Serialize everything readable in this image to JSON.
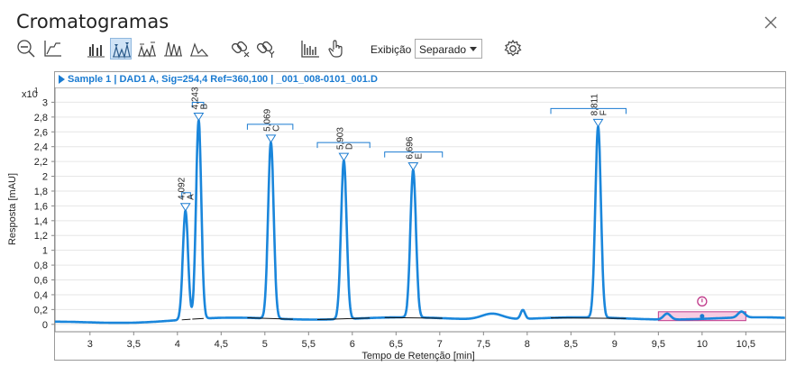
{
  "window": {
    "title": "Cromatogramas"
  },
  "toolbar": {
    "display_label": "Exibição",
    "display_mode": "Separado",
    "active_tool": "peak-label-icon"
  },
  "sample": {
    "header": "Sample 1 | DAD1 A, Sig=254,4 Ref=360,100 | _001_008-0101_001.D"
  },
  "chart_data": {
    "type": "line",
    "title": "",
    "xlabel": "Tempo de Retenção [min]",
    "ylabel": "Resposta [mAU]",
    "y_multiplier": "x10",
    "y_exponent": "1",
    "xlim": [
      2.6,
      10.95
    ],
    "ylim": [
      -0.1,
      3.2
    ],
    "x_ticks": [
      3,
      3.5,
      4,
      4.5,
      5,
      5.5,
      6,
      6.5,
      7,
      7.5,
      8,
      8.5,
      9,
      9.5,
      10,
      10.5
    ],
    "x_tick_labels": [
      "3",
      "3,5",
      "4",
      "4,5",
      "5",
      "5,5",
      "6",
      "6,5",
      "7",
      "7,5",
      "8",
      "8,5",
      "9",
      "9,5",
      "10",
      "10,5"
    ],
    "y_ticks": [
      0,
      0.2,
      0.4,
      0.6,
      0.8,
      1,
      1.2,
      1.4,
      1.6,
      1.8,
      2,
      2.2,
      2.4,
      2.6,
      2.8,
      3
    ],
    "y_tick_labels": [
      "0",
      "0,2",
      "0,4",
      "0,6",
      "0,8",
      "1",
      "1,2",
      "1,4",
      "1,6",
      "1,8",
      "2",
      "2,2",
      "2,4",
      "2,6",
      "2,8",
      "3"
    ],
    "line_color": "#1a86db",
    "peaks": [
      {
        "name": "A",
        "rt": 4.092,
        "rt_label": "4,092",
        "height": 1.47,
        "width": 0.03,
        "int_start": 4.05,
        "int_end": 4.15
      },
      {
        "name": "B",
        "rt": 4.243,
        "rt_label": "4,243",
        "height": 2.68,
        "width": 0.03,
        "int_start": 4.17,
        "int_end": 4.3
      },
      {
        "name": "C",
        "rt": 5.069,
        "rt_label": "5,069",
        "height": 2.38,
        "width": 0.032,
        "int_start": 4.8,
        "int_end": 5.32
      },
      {
        "name": "D",
        "rt": 5.903,
        "rt_label": "5,903",
        "height": 2.14,
        "width": 0.032,
        "int_start": 5.6,
        "int_end": 6.2
      },
      {
        "name": "E",
        "rt": 6.696,
        "rt_label": "6,696",
        "height": 1.99,
        "width": 0.032,
        "int_start": 6.37,
        "int_end": 7.03
      },
      {
        "name": "F",
        "rt": 8.811,
        "rt_label": "8,811",
        "height": 2.58,
        "width": 0.032,
        "int_start": 8.27,
        "int_end": 9.13
      }
    ],
    "minor_bumps": [
      {
        "rt": 7.6,
        "height": 0.08,
        "width": 0.12
      },
      {
        "rt": 7.95,
        "height": 0.12,
        "width": 0.025
      },
      {
        "rt": 9.6,
        "height": 0.08,
        "width": 0.04
      },
      {
        "rt": 10.45,
        "height": 0.08,
        "width": 0.04
      }
    ],
    "highlight_region": {
      "x_start": 9.5,
      "x_end": 10.5,
      "y_start": 0.05,
      "y_end": 0.17,
      "color": "#f4b6d6",
      "border_color": "#c03a8a"
    },
    "grid": true,
    "legend": "none"
  }
}
